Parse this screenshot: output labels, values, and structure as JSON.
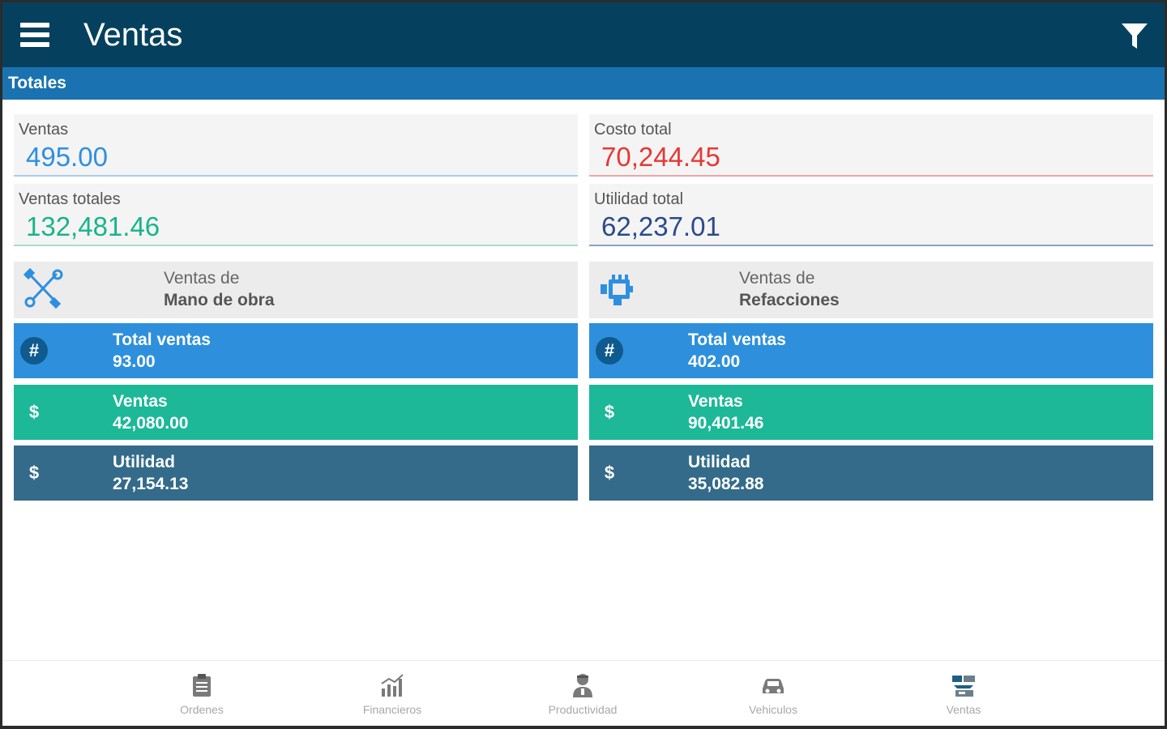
{
  "app": {
    "title": "Ventas"
  },
  "section": {
    "title": "Totales"
  },
  "metrics": {
    "ventas": {
      "label": "Ventas",
      "value": "495.00",
      "color": "#2e8fe0"
    },
    "costo_total": {
      "label": "Costo total",
      "value": "70,244.45",
      "color": "#e53935"
    },
    "ventas_totales": {
      "label": "Ventas totales",
      "value": "132,481.46",
      "color": "#19b48a"
    },
    "utilidad_total": {
      "label": "Utilidad total",
      "value": "62,237.01",
      "color": "#2a4a8a"
    }
  },
  "mano_de_obra": {
    "icon": "tools-icon",
    "line1": "Ventas de",
    "line2": "Mano de obra",
    "total_ventas": {
      "icon": "#",
      "label": "Total ventas",
      "value": "93.00"
    },
    "ventas": {
      "icon": "$",
      "label": "Ventas",
      "value": "42,080.00"
    },
    "utilidad": {
      "icon": "$",
      "label": "Utilidad",
      "value": "27,154.13"
    }
  },
  "refacciones": {
    "icon": "engine-part-icon",
    "line1": "Ventas de",
    "line2": "Refacciones",
    "total_ventas": {
      "icon": "#",
      "label": "Total ventas",
      "value": "402.00"
    },
    "ventas": {
      "icon": "$",
      "label": "Ventas",
      "value": "90,401.46"
    },
    "utilidad": {
      "icon": "$",
      "label": "Utilidad",
      "value": "35,082.88"
    }
  },
  "bottom_nav": {
    "items": [
      {
        "label": "Ordenes",
        "icon": "clipboard-icon"
      },
      {
        "label": "Financieros",
        "icon": "bar-chart-icon"
      },
      {
        "label": "Productividad",
        "icon": "mechanic-icon"
      },
      {
        "label": "Vehiculos",
        "icon": "car-icon"
      },
      {
        "label": "Ventas",
        "icon": "sales-icon"
      }
    ]
  },
  "colors": {
    "appbar": "#05415e",
    "section_bar": "#1a73b0",
    "stat_blue": "#2e90dc",
    "stat_green": "#1cb898",
    "stat_navy": "#346b8a"
  }
}
